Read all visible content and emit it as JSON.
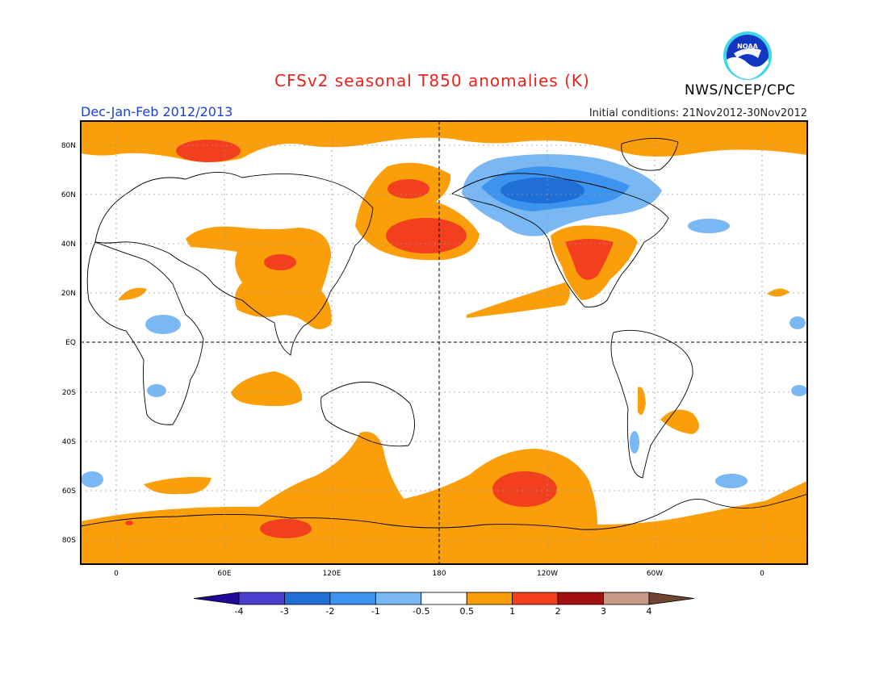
{
  "title": "CFSv2 seasonal T850 anomalies (K)",
  "season": "Dec-Jan-Feb 2012/2013",
  "initial_conditions": "Initial conditions: 21Nov2012-30Nov2012",
  "agency": "NWS/NCEP/CPC",
  "logo_text": "NOAA",
  "map": {
    "lon_labels": [
      "0",
      "60E",
      "120E",
      "180",
      "120W",
      "60W",
      "0"
    ],
    "lat_labels": [
      "80N",
      "60N",
      "40N",
      "20N",
      "EQ",
      "20S",
      "40S",
      "60S",
      "80S"
    ]
  },
  "colorbar": {
    "tick_labels": [
      "-4",
      "-3",
      "-2",
      "-1",
      "-0.5",
      "0.5",
      "1",
      "2",
      "3",
      "4"
    ],
    "colors": [
      "#1e0a96",
      "#4a3fd0",
      "#1f6fd6",
      "#3d94ef",
      "#7ab8f4",
      "#ffffff",
      "#fa9e0a",
      "#f2401e",
      "#a31010",
      "#c79a88",
      "#6e4533"
    ]
  },
  "fill_colors": {
    "warm1": "#fa9e0a",
    "warm2": "#f2401e",
    "cool1": "#7ab8f4",
    "cool2": "#3d94ef",
    "cool3": "#1f6fd6"
  }
}
